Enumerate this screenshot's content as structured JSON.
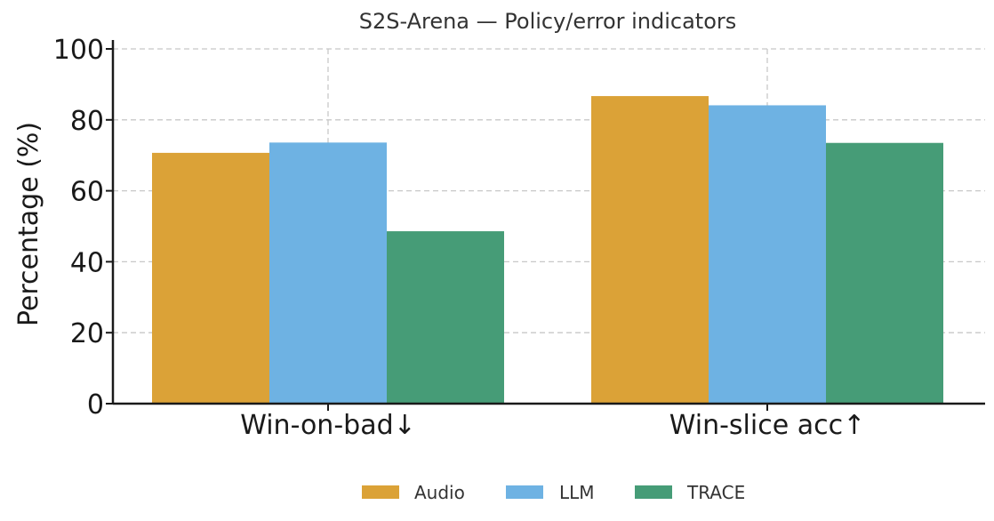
{
  "chart_data": {
    "type": "bar",
    "title": "S2S-Arena — Policy/error indicators",
    "ylabel": "Percentage (%)",
    "xlabel": "",
    "categories": [
      "Win-on-bad↓",
      "Win-slice acc↑"
    ],
    "series": [
      {
        "name": "Audio",
        "color": "#DBA237",
        "values": [
          70.7,
          86.7
        ]
      },
      {
        "name": "LLM",
        "color": "#6EB2E3",
        "values": [
          73.6,
          84.1
        ]
      },
      {
        "name": "TRACE",
        "color": "#469C77",
        "values": [
          48.6,
          73.5
        ]
      }
    ],
    "ylim": [
      0,
      100
    ],
    "yticks": [
      0,
      20,
      40,
      60,
      80,
      100
    ],
    "grid": true,
    "legend": "bottom-center"
  }
}
